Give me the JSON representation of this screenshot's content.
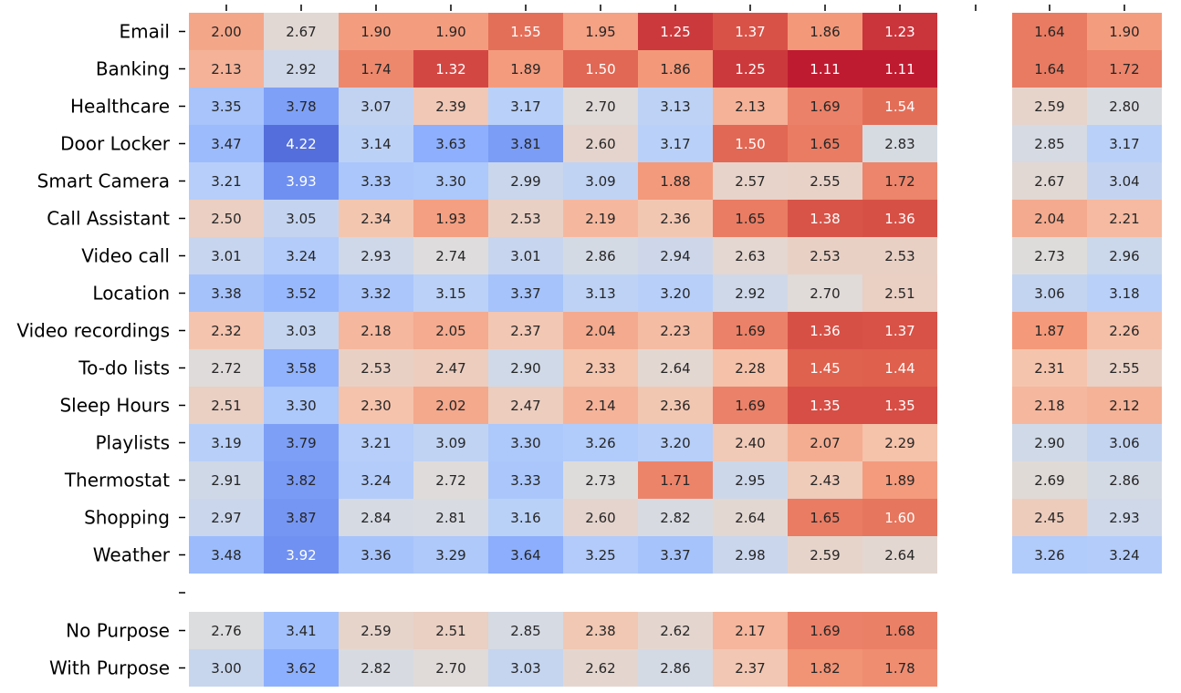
{
  "chart_data": {
    "type": "heatmap",
    "colormap": "coolwarm_r",
    "vmin": 1.0,
    "vmax": 4.5,
    "row_labels": [
      "Email",
      "Banking",
      "Healthcare",
      "Door Locker",
      "Smart Camera",
      "Call Assistant",
      "Video call",
      "Location",
      "Video recordings",
      "To-do lists",
      "Sleep Hours",
      "Playlists",
      "Thermostat",
      "Shopping",
      "Weather"
    ],
    "summary_row_labels": [
      "No Purpose",
      "With Purpose"
    ],
    "main_values": [
      [
        2.0,
        2.67,
        1.9,
        1.9,
        1.55,
        1.95,
        1.25,
        1.37,
        1.86,
        1.23
      ],
      [
        2.13,
        2.92,
        1.74,
        1.32,
        1.89,
        1.5,
        1.86,
        1.25,
        1.11,
        1.11
      ],
      [
        3.35,
        3.78,
        3.07,
        2.39,
        3.17,
        2.7,
        3.13,
        2.13,
        1.69,
        1.54
      ],
      [
        3.47,
        4.22,
        3.14,
        3.63,
        3.81,
        2.6,
        3.17,
        1.5,
        1.65,
        2.83
      ],
      [
        3.21,
        3.93,
        3.33,
        3.3,
        2.99,
        3.09,
        1.88,
        2.57,
        2.55,
        1.72
      ],
      [
        2.5,
        3.05,
        2.34,
        1.93,
        2.53,
        2.19,
        2.36,
        1.65,
        1.38,
        1.36
      ],
      [
        3.01,
        3.24,
        2.93,
        2.74,
        3.01,
        2.86,
        2.94,
        2.63,
        2.53,
        2.53
      ],
      [
        3.38,
        3.52,
        3.32,
        3.15,
        3.37,
        3.13,
        3.2,
        2.92,
        2.7,
        2.51
      ],
      [
        2.32,
        3.03,
        2.18,
        2.05,
        2.37,
        2.04,
        2.23,
        1.69,
        1.36,
        1.37
      ],
      [
        2.72,
        3.58,
        2.53,
        2.47,
        2.9,
        2.33,
        2.64,
        2.28,
        1.45,
        1.44
      ],
      [
        2.51,
        3.3,
        2.3,
        2.02,
        2.47,
        2.14,
        2.36,
        1.69,
        1.35,
        1.35
      ],
      [
        3.19,
        3.79,
        3.21,
        3.09,
        3.3,
        3.26,
        3.2,
        2.4,
        2.07,
        2.29
      ],
      [
        2.91,
        3.82,
        3.24,
        2.72,
        3.33,
        2.73,
        1.71,
        2.95,
        2.43,
        1.89
      ],
      [
        2.97,
        3.87,
        2.84,
        2.81,
        3.16,
        2.6,
        2.82,
        2.64,
        1.65,
        1.6
      ],
      [
        3.48,
        3.92,
        3.36,
        3.29,
        3.64,
        3.25,
        3.37,
        2.98,
        2.59,
        2.64
      ]
    ],
    "side_values": [
      [
        1.64,
        1.9
      ],
      [
        1.64,
        1.72
      ],
      [
        2.59,
        2.8
      ],
      [
        2.85,
        3.17
      ],
      [
        2.67,
        3.04
      ],
      [
        2.04,
        2.21
      ],
      [
        2.73,
        2.96
      ],
      [
        3.06,
        3.18
      ],
      [
        1.87,
        2.26
      ],
      [
        2.31,
        2.55
      ],
      [
        2.18,
        2.12
      ],
      [
        2.9,
        3.06
      ],
      [
        2.69,
        2.86
      ],
      [
        2.45,
        2.93
      ],
      [
        3.26,
        3.24
      ]
    ],
    "summary_values": [
      [
        2.76,
        3.41,
        2.59,
        2.51,
        2.85,
        2.38,
        2.62,
        2.17,
        1.69,
        1.68
      ],
      [
        3.0,
        3.62,
        2.82,
        2.7,
        3.03,
        2.62,
        2.86,
        2.37,
        1.82,
        1.78
      ]
    ],
    "title": "",
    "xlabel": "",
    "ylabel": ""
  }
}
